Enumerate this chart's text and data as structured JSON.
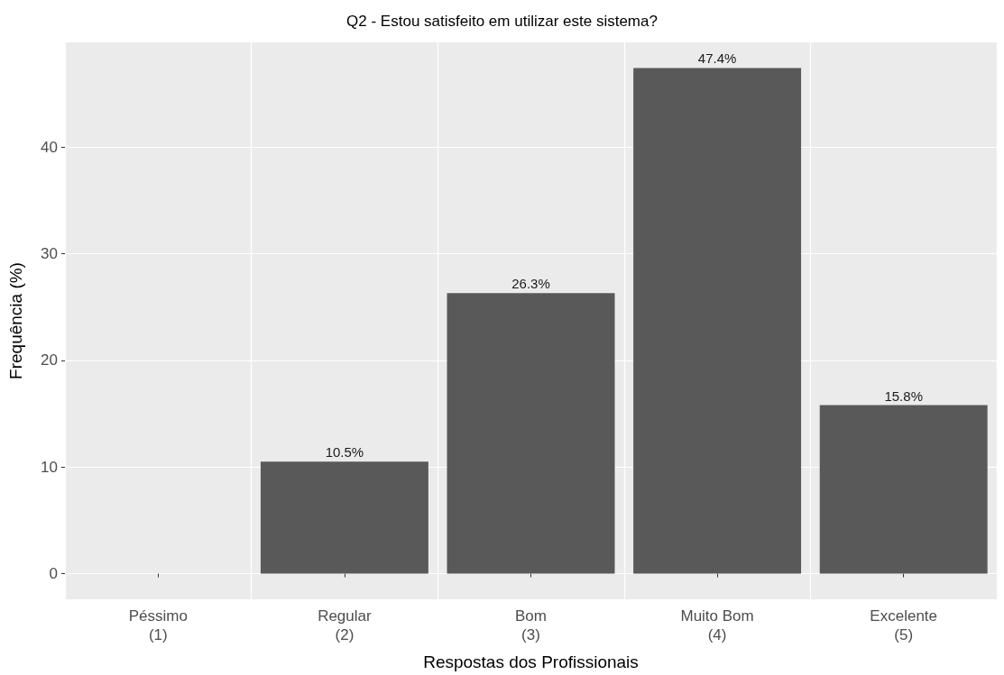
{
  "chart_data": {
    "type": "bar",
    "title": "Q2 - Estou satisfeito em utilizar este sistema?",
    "xlabel": "Respostas dos Profissionais",
    "ylabel": "Frequência (%)",
    "categories": [
      "Péssimo\n(1)",
      "Regular\n(2)",
      "Bom\n(3)",
      "Muito Bom\n(4)",
      "Excelente\n(5)"
    ],
    "values": [
      0,
      10.5,
      26.3,
      47.4,
      15.8
    ],
    "value_labels": [
      null,
      "10.5%",
      "26.3%",
      "47.4%",
      "15.8%"
    ],
    "color": "#595959",
    "ylim": [
      -2.4,
      49.8
    ],
    "yticks": [
      0,
      10,
      20,
      30,
      40
    ],
    "grid": true
  }
}
